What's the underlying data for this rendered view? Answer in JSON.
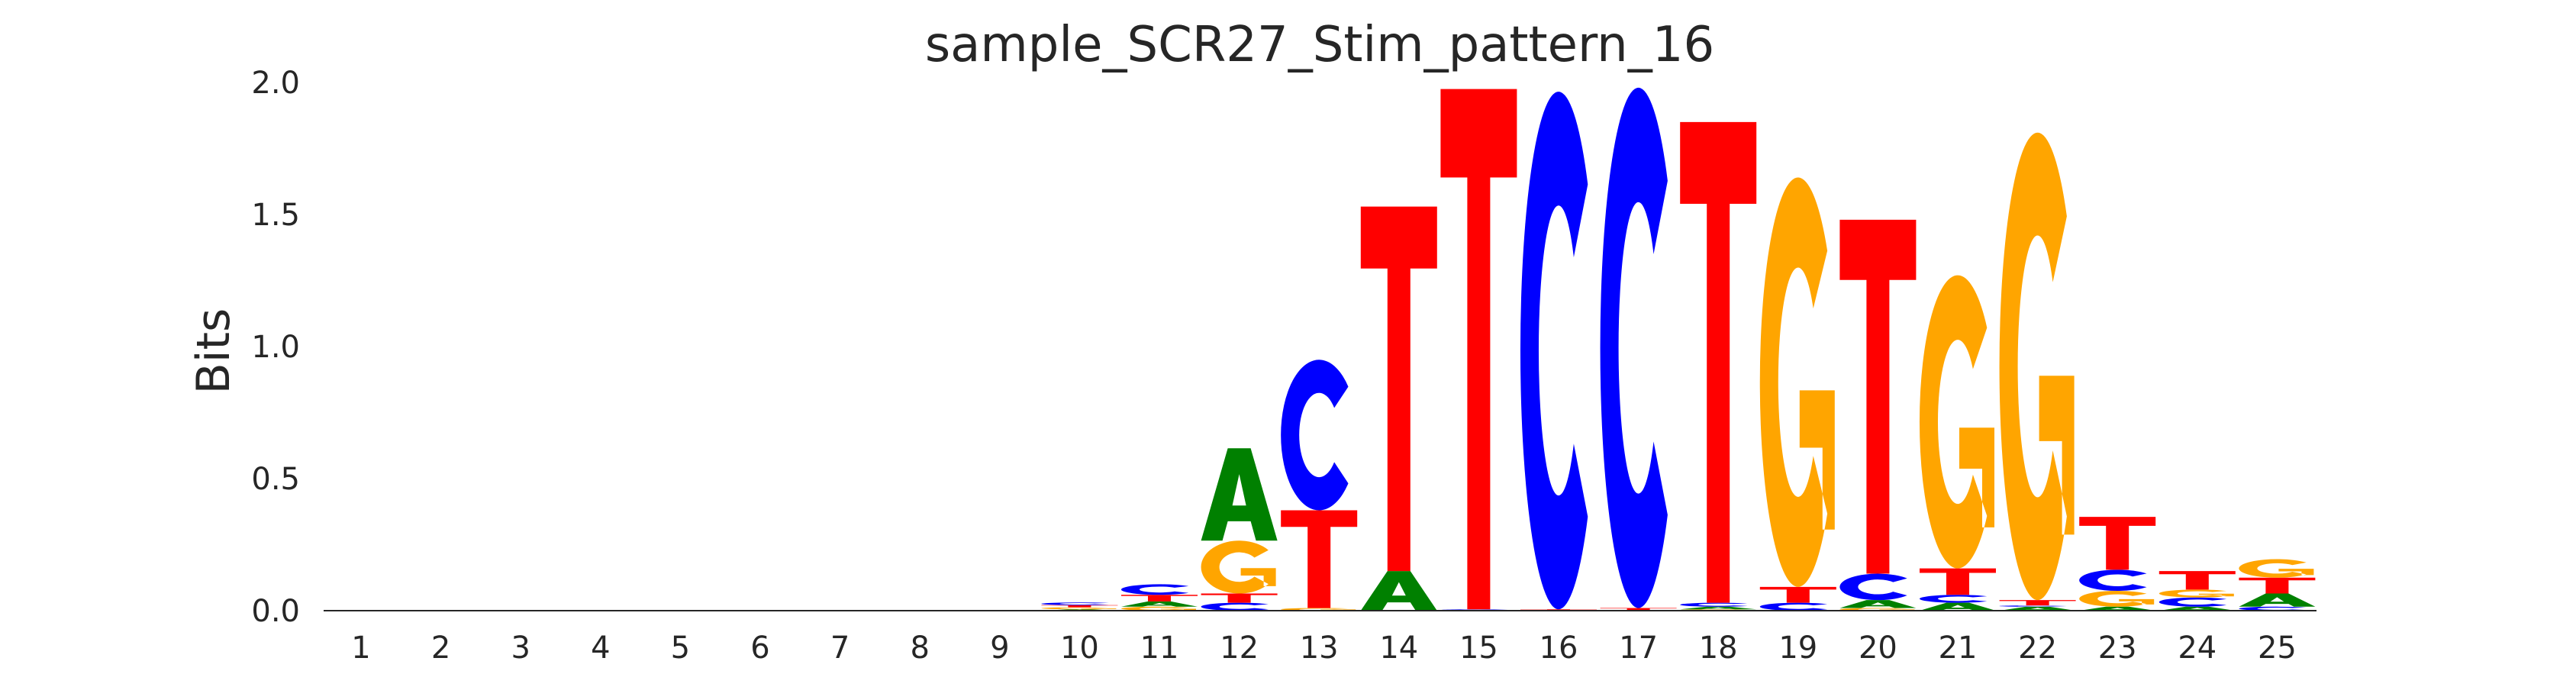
{
  "chart_data": {
    "type": "sequence-logo",
    "title": "sample_SCR27_Stim_pattern_16",
    "xlabel": "",
    "ylabel": "Bits",
    "ylim": [
      0,
      2.0
    ],
    "yticks": [
      "0.0",
      "0.5",
      "1.0",
      "1.5",
      "2.0"
    ],
    "xticks": [
      "1",
      "2",
      "3",
      "4",
      "5",
      "6",
      "7",
      "8",
      "9",
      "10",
      "11",
      "12",
      "13",
      "14",
      "15",
      "16",
      "17",
      "18",
      "19",
      "20",
      "21",
      "22",
      "23",
      "24",
      "25"
    ],
    "grid": false,
    "colors": {
      "A": "#008000",
      "C": "#0000ff",
      "G": "#ffa500",
      "T": "#ff0000"
    },
    "positions": [
      {
        "pos": 1,
        "stack": []
      },
      {
        "pos": 2,
        "stack": []
      },
      {
        "pos": 3,
        "stack": []
      },
      {
        "pos": 4,
        "stack": []
      },
      {
        "pos": 5,
        "stack": []
      },
      {
        "pos": 6,
        "stack": []
      },
      {
        "pos": 7,
        "stack": []
      },
      {
        "pos": 8,
        "stack": []
      },
      {
        "pos": 9,
        "stack": []
      },
      {
        "pos": 10,
        "stack": [
          [
            "A",
            0.005
          ],
          [
            "G",
            0.008
          ],
          [
            "T",
            0.008
          ],
          [
            "C",
            0.01
          ]
        ]
      },
      {
        "pos": 11,
        "stack": [
          [
            "G",
            0.015
          ],
          [
            "A",
            0.02
          ],
          [
            "T",
            0.025
          ],
          [
            "C",
            0.04
          ]
        ]
      },
      {
        "pos": 12,
        "stack": [
          [
            "C",
            0.03
          ],
          [
            "T",
            0.035
          ],
          [
            "G",
            0.2
          ],
          [
            "A",
            0.35
          ]
        ]
      },
      {
        "pos": 13,
        "stack": [
          [
            "G",
            0.01
          ],
          [
            "T",
            0.37
          ],
          [
            "C",
            0.57
          ]
        ]
      },
      {
        "pos": 14,
        "stack": [
          [
            "A",
            0.15
          ],
          [
            "T",
            1.38
          ]
        ]
      },
      {
        "pos": 15,
        "stack": [
          [
            "C",
            0.005
          ],
          [
            "T",
            1.97
          ]
        ]
      },
      {
        "pos": 16,
        "stack": [
          [
            "T",
            0.005
          ],
          [
            "C",
            1.96
          ]
        ]
      },
      {
        "pos": 17,
        "stack": [
          [
            "T",
            0.01
          ],
          [
            "C",
            1.97
          ]
        ]
      },
      {
        "pos": 18,
        "stack": [
          [
            "G",
            0.005
          ],
          [
            "A",
            0.01
          ],
          [
            "C",
            0.015
          ],
          [
            "T",
            1.82
          ]
        ]
      },
      {
        "pos": 19,
        "stack": [
          [
            "C",
            0.03
          ],
          [
            "T",
            0.06
          ],
          [
            "G",
            1.55
          ]
        ]
      },
      {
        "pos": 20,
        "stack": [
          [
            "G",
            0.01
          ],
          [
            "A",
            0.03
          ],
          [
            "C",
            0.1
          ],
          [
            "T",
            1.34
          ]
        ]
      },
      {
        "pos": 21,
        "stack": [
          [
            "A",
            0.03
          ],
          [
            "C",
            0.03
          ],
          [
            "T",
            0.1
          ],
          [
            "G",
            1.11
          ]
        ]
      },
      {
        "pos": 22,
        "stack": [
          [
            "A",
            0.015
          ],
          [
            "C",
            0.005
          ],
          [
            "T",
            0.02
          ],
          [
            "G",
            1.77
          ]
        ]
      },
      {
        "pos": 23,
        "stack": [
          [
            "A",
            0.015
          ],
          [
            "G",
            0.06
          ],
          [
            "C",
            0.08
          ],
          [
            "T",
            0.2
          ]
        ]
      },
      {
        "pos": 24,
        "stack": [
          [
            "A",
            0.015
          ],
          [
            "C",
            0.035
          ],
          [
            "G",
            0.03
          ],
          [
            "T",
            0.07
          ]
        ]
      },
      {
        "pos": 25,
        "stack": [
          [
            "C",
            0.015
          ],
          [
            "A",
            0.05
          ],
          [
            "T",
            0.06
          ],
          [
            "G",
            0.07
          ]
        ]
      }
    ]
  }
}
